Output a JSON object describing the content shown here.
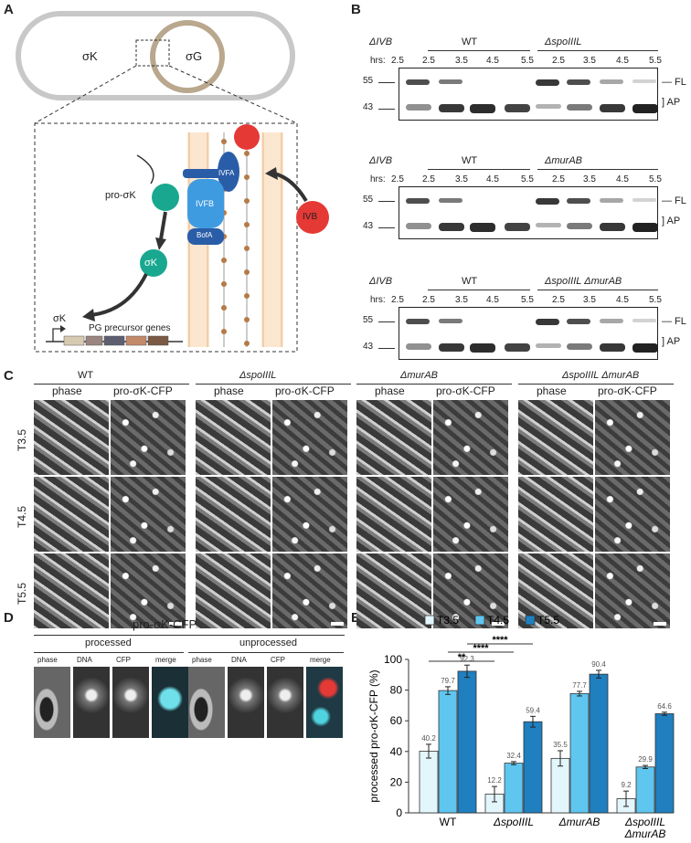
{
  "panels": {
    "A": "A",
    "B": "B",
    "C": "C",
    "D": "D",
    "E": "E"
  },
  "panelA": {
    "mother_label": "σK",
    "forespore_label": "σG",
    "pro_label": "pro-σK",
    "sigk_label": "σK",
    "promoter_label": "σK",
    "genes_label": "PG precursor genes",
    "ivfa": "IVFA",
    "ivfb": "IVFB",
    "bofa": "BofA",
    "ivb": "IVB"
  },
  "panelB": {
    "blots": [
      {
        "delta": "ΔIVB",
        "wt": "WT",
        "mutant": "ΔspoIIIL",
        "hrs_label": "hrs:",
        "times": [
          "2.5",
          "2.5",
          "3.5",
          "4.5",
          "5.5",
          "2.5",
          "3.5",
          "4.5",
          "5.5"
        ],
        "mw_top": "55",
        "mw_bot": "43",
        "fl": "FL",
        "ap": "AP"
      },
      {
        "delta": "ΔIVB",
        "wt": "WT",
        "mutant": "ΔmurAB",
        "hrs_label": "hrs:",
        "times": [
          "2.5",
          "2.5",
          "3.5",
          "4.5",
          "5.5",
          "2.5",
          "3.5",
          "4.5",
          "5.5"
        ],
        "mw_top": "55",
        "mw_bot": "43",
        "fl": "FL",
        "ap": "AP"
      },
      {
        "delta": "ΔIVB",
        "wt": "WT",
        "mutant": "ΔspoIIIL ΔmurAB",
        "hrs_label": "hrs:",
        "times": [
          "2.5",
          "2.5",
          "3.5",
          "4.5",
          "5.5",
          "2.5",
          "3.5",
          "4.5",
          "5.5"
        ],
        "mw_top": "55",
        "mw_bot": "43",
        "fl": "FL",
        "ap": "AP"
      }
    ]
  },
  "panelC": {
    "strains": [
      "WT",
      "ΔspoIIIL",
      "ΔmurAB",
      "ΔspoIIIL ΔmurAB"
    ],
    "col_phase": "phase",
    "col_cfp": "pro-σK-CFP",
    "rows": [
      "T3.5",
      "T4.5",
      "T5.5"
    ]
  },
  "panelD": {
    "title": "pro-σK-CFP",
    "processed": "processed",
    "unprocessed": "unprocessed",
    "cols": [
      "phase",
      "DNA",
      "CFP",
      "merge"
    ]
  },
  "chart_data": {
    "type": "bar",
    "categories": [
      "WT",
      "ΔspoIIIL",
      "ΔmurAB",
      "ΔspoIIIL ΔmurAB"
    ],
    "series": [
      {
        "name": "T3.5",
        "values": [
          40.2,
          12.2,
          35.5,
          9.2
        ],
        "errors": [
          4.5,
          5,
          5,
          5
        ],
        "color": "#e3f6fc"
      },
      {
        "name": "T4.5",
        "values": [
          79.7,
          32.4,
          77.7,
          29.9
        ],
        "errors": [
          2.5,
          1,
          1.5,
          1
        ],
        "color": "#5fc6ef"
      },
      {
        "name": "T5.5",
        "values": [
          92.3,
          59.4,
          90.4,
          64.6
        ],
        "errors": [
          4,
          3.5,
          2.5,
          1
        ],
        "color": "#1f7fbf"
      }
    ],
    "ylabel": "processed pro-σK-CFP (%)",
    "ylim": [
      0,
      100
    ],
    "yticks": [
      "0",
      "20",
      "40",
      "60",
      "80",
      "100"
    ],
    "significance": [
      "**",
      "****",
      "****"
    ]
  }
}
